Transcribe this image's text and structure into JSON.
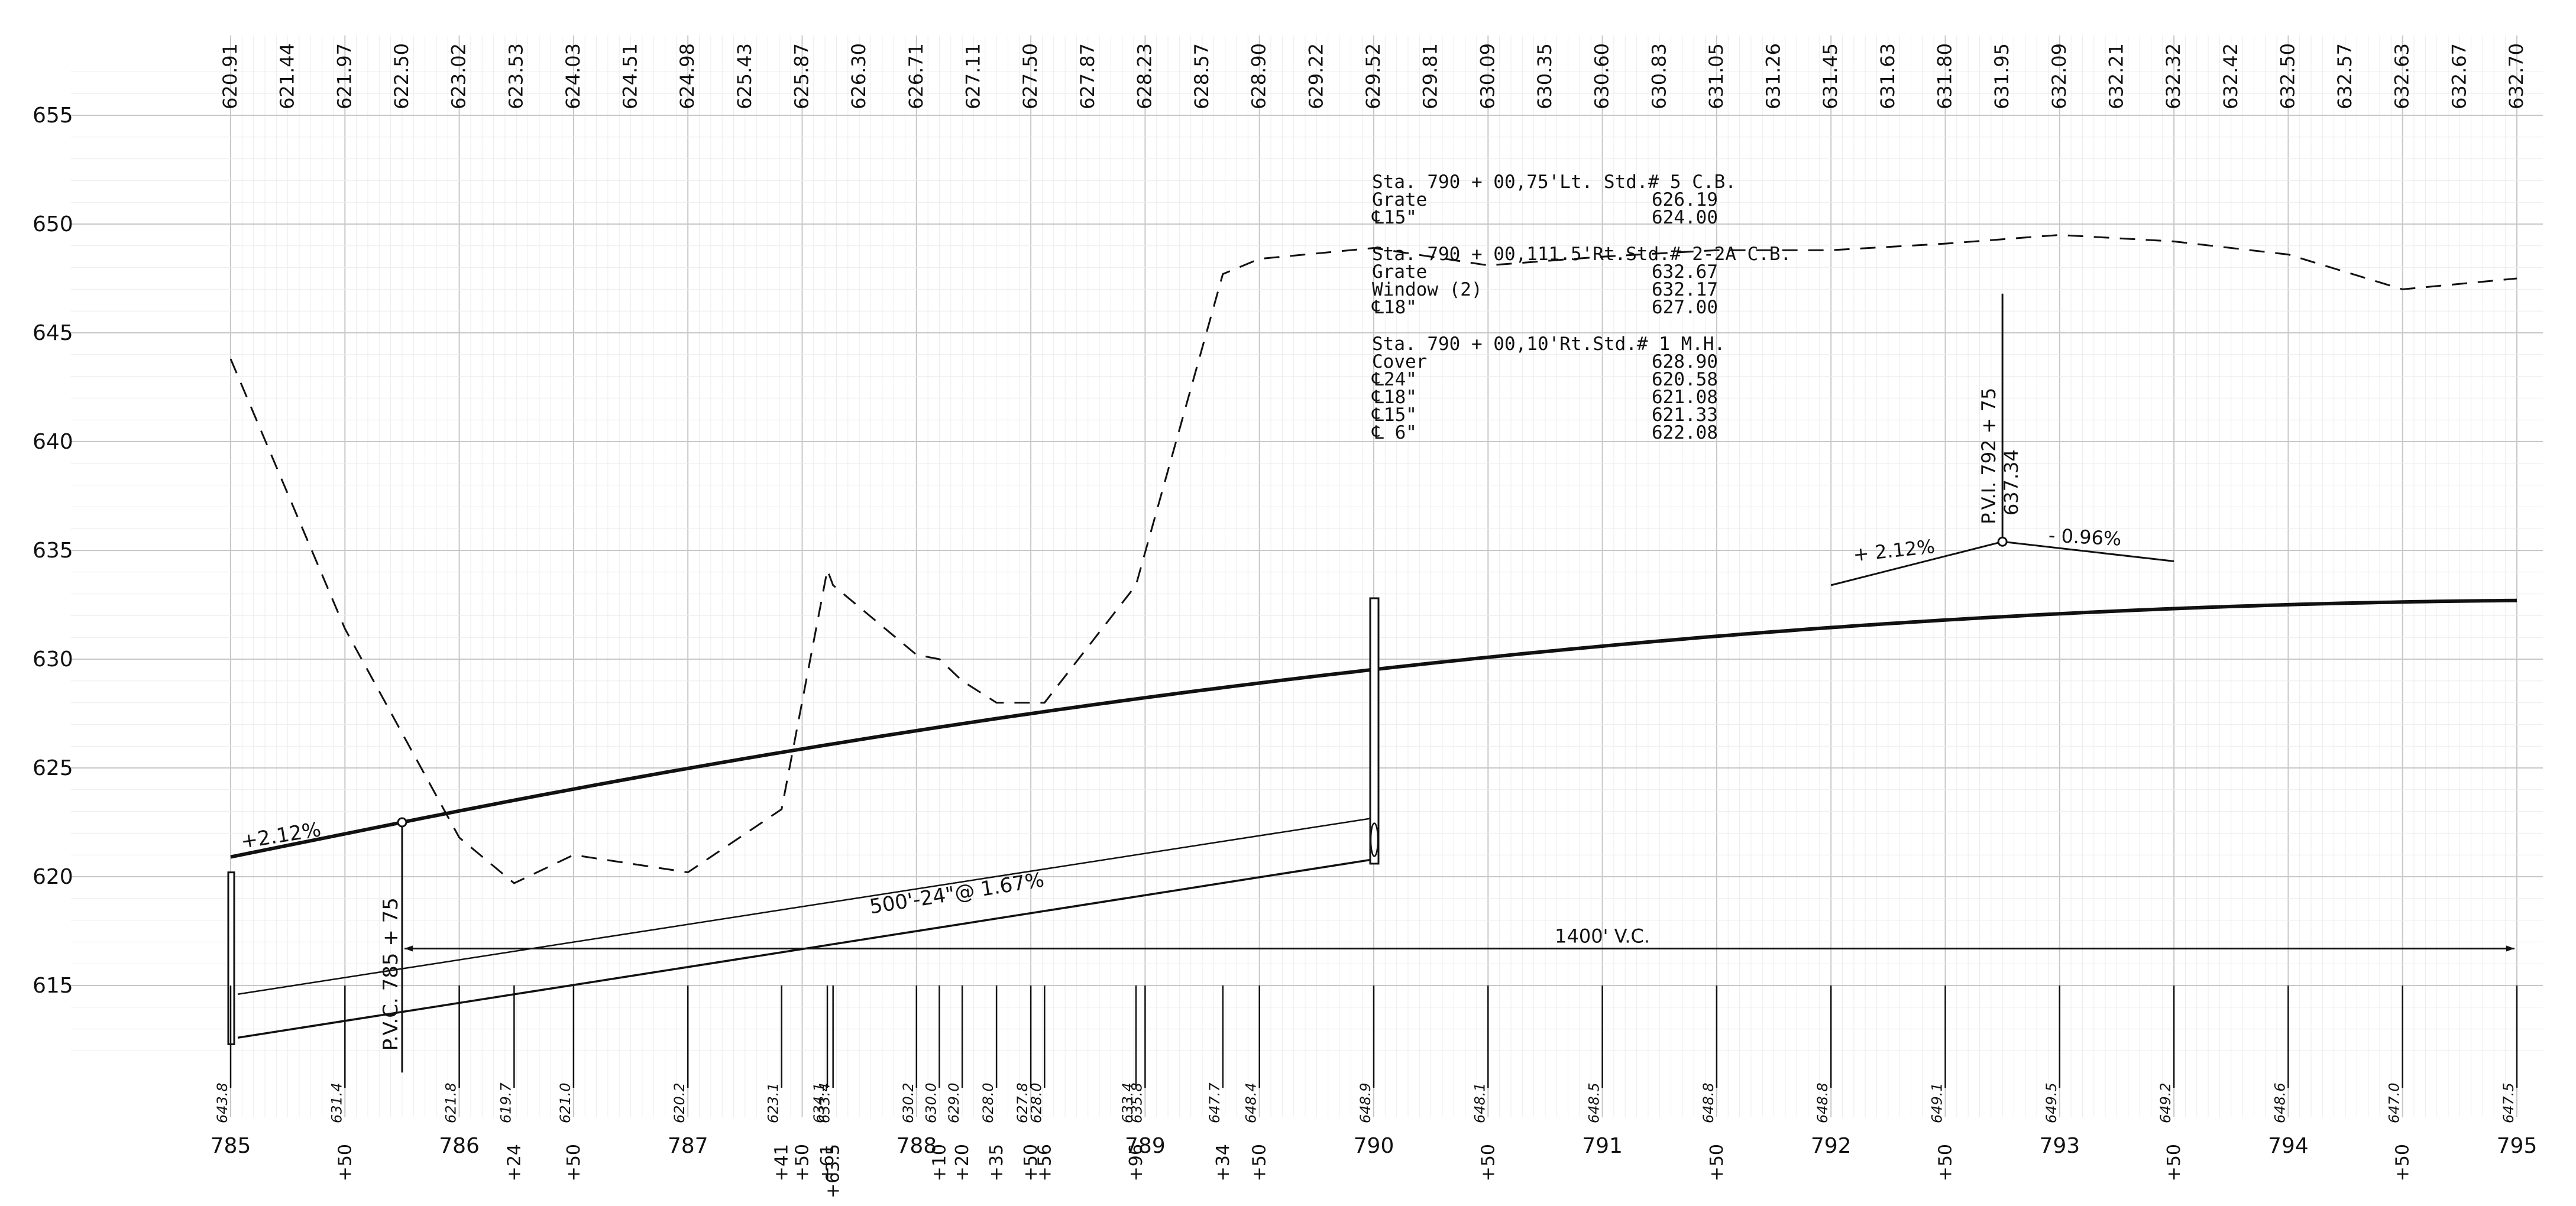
{
  "profile": {
    "station_start": 785,
    "station_end": 795,
    "elev_min": 612,
    "elev_max": 657,
    "elevation_axis_labels": [
      "655",
      "650",
      "645",
      "640",
      "635",
      "630",
      "625",
      "620",
      "615"
    ],
    "profile_grade_elevations": [
      "620.91",
      "621.44",
      "621.97",
      "622.50",
      "623.02",
      "623.53",
      "624.03",
      "624.51",
      "624.98",
      "625.43",
      "625.87",
      "626.30",
      "626.71",
      "627.11",
      "627.50",
      "627.87",
      "628.23",
      "628.57",
      "628.90",
      "629.22",
      "629.52",
      "629.81",
      "630.09",
      "630.35",
      "630.60",
      "630.83",
      "631.05",
      "631.26",
      "631.45",
      "631.63",
      "631.80",
      "631.95",
      "632.09",
      "632.21",
      "632.32",
      "632.42",
      "632.50",
      "632.57",
      "632.63",
      "632.67",
      "632.70"
    ],
    "stations_major": [
      "785",
      "786",
      "787",
      "788",
      "789",
      "790",
      "791",
      "792",
      "793",
      "794",
      "795"
    ],
    "station_minor": [
      {
        "label": "+50",
        "st": 785.5
      },
      {
        "label": "+24",
        "st": 786.24
      },
      {
        "label": "+50",
        "st": 786.5
      },
      {
        "label": "+41",
        "st": 787.41
      },
      {
        "label": "+50",
        "st": 787.5
      },
      {
        "label": "+61",
        "st": 787.61
      },
      {
        "label": "+63.5",
        "st": 787.635
      },
      {
        "label": "+10",
        "st": 788.1
      },
      {
        "label": "+20",
        "st": 788.2
      },
      {
        "label": "+35",
        "st": 788.35
      },
      {
        "label": "+50",
        "st": 788.5
      },
      {
        "label": "+56",
        "st": 788.56
      },
      {
        "label": "+96",
        "st": 788.96
      },
      {
        "label": "+34",
        "st": 789.34
      },
      {
        "label": "+50",
        "st": 789.5
      },
      {
        "label": "+50",
        "st": 790.5
      },
      {
        "label": "+50",
        "st": 791.5
      },
      {
        "label": "+50",
        "st": 792.5
      },
      {
        "label": "+50",
        "st": 793.5
      },
      {
        "label": "+50",
        "st": 794.5
      }
    ],
    "ground_elevations": [
      {
        "label": "643.8",
        "st": 785.0
      },
      {
        "label": "631.4",
        "st": 785.5
      },
      {
        "label": "621.8",
        "st": 786.0
      },
      {
        "label": "619.7",
        "st": 786.24
      },
      {
        "label": "621.0",
        "st": 786.5
      },
      {
        "label": "620.2",
        "st": 787.0
      },
      {
        "label": "623.1",
        "st": 787.41
      },
      {
        "label": "634.1",
        "st": 787.61
      },
      {
        "label": "633.4",
        "st": 787.635
      },
      {
        "label": "630.2",
        "st": 788.0
      },
      {
        "label": "630.0",
        "st": 788.1
      },
      {
        "label": "629.0",
        "st": 788.2
      },
      {
        "label": "628.0",
        "st": 788.35
      },
      {
        "label": "627.8",
        "st": 788.5
      },
      {
        "label": "628.0",
        "st": 788.56
      },
      {
        "label": "633.4",
        "st": 788.96
      },
      {
        "label": "635.8",
        "st": 789.0
      },
      {
        "label": "647.7",
        "st": 789.34
      },
      {
        "label": "648.4",
        "st": 789.5
      },
      {
        "label": "648.9",
        "st": 790.0
      },
      {
        "label": "648.1",
        "st": 790.5
      },
      {
        "label": "648.5",
        "st": 791.0
      },
      {
        "label": "648.8",
        "st": 791.5
      },
      {
        "label": "648.8",
        "st": 792.0
      },
      {
        "label": "649.1",
        "st": 792.5
      },
      {
        "label": "649.5",
        "st": 793.0
      },
      {
        "label": "649.2",
        "st": 793.5
      },
      {
        "label": "648.6",
        "st": 794.0
      },
      {
        "label": "647.0",
        "st": 794.5
      },
      {
        "label": "647.5",
        "st": 795.0
      }
    ],
    "ground_line_points": [
      [
        785.0,
        643.8
      ],
      [
        785.5,
        631.4
      ],
      [
        786.0,
        621.8
      ],
      [
        786.24,
        619.7
      ],
      [
        786.5,
        621.0
      ],
      [
        787.0,
        620.2
      ],
      [
        787.41,
        623.1
      ],
      [
        787.61,
        634.1
      ],
      [
        787.635,
        633.4
      ],
      [
        788.0,
        630.2
      ],
      [
        788.1,
        630.0
      ],
      [
        788.2,
        629.0
      ],
      [
        788.35,
        628.0
      ],
      [
        788.56,
        628.0
      ],
      [
        788.96,
        633.4
      ],
      [
        789.34,
        647.7
      ],
      [
        789.5,
        648.4
      ],
      [
        790.0,
        648.9
      ],
      [
        790.5,
        648.1
      ],
      [
        791.0,
        648.5
      ],
      [
        791.5,
        648.8
      ],
      [
        792.0,
        648.8
      ],
      [
        792.5,
        649.1
      ],
      [
        793.0,
        649.5
      ],
      [
        793.5,
        649.2
      ],
      [
        794.0,
        648.6
      ],
      [
        794.5,
        647.0
      ],
      [
        795.0,
        647.5
      ]
    ],
    "grade_in_label": "+2.12%",
    "pvc_label": "P.V.C. 785 + 75",
    "vertical_curve_label": "1400' V.C.",
    "pipe_label": "500'-24\"@ 1.67%",
    "pvi": {
      "station_label": "P.V.I. 792 + 75",
      "elevation_label": "637.34",
      "grade_in": "+ 2.12%",
      "grade_out": "- 0.96%"
    },
    "structure_notes": [
      {
        "title": "Sta. 790 + 00,75'Lt. Std.# 5 C.B.",
        "rows": [
          [
            "Grate",
            "626.19"
          ],
          [
            "℄15\"",
            "624.00"
          ]
        ]
      },
      {
        "title": "Sta. 790 + 00,111.5'Rt.Std.# 2-2A C.B.",
        "rows": [
          [
            "Grate",
            "632.67"
          ],
          [
            "Window (2)",
            "632.17"
          ],
          [
            "℄18\"",
            "627.00"
          ]
        ]
      },
      {
        "title": "Sta. 790 + 00,10'Rt.Std.# 1 M.H.",
        "rows": [
          [
            "Cover",
            "628.90"
          ],
          [
            "℄24\"",
            "620.58"
          ],
          [
            "℄18\"",
            "621.08"
          ],
          [
            "℄15\"",
            "621.33"
          ],
          [
            "℄ 6\"",
            "622.08"
          ]
        ]
      }
    ],
    "colors": {
      "paper": "#ffffff",
      "grid": "#d9d9d9",
      "ink": "#111111"
    }
  }
}
